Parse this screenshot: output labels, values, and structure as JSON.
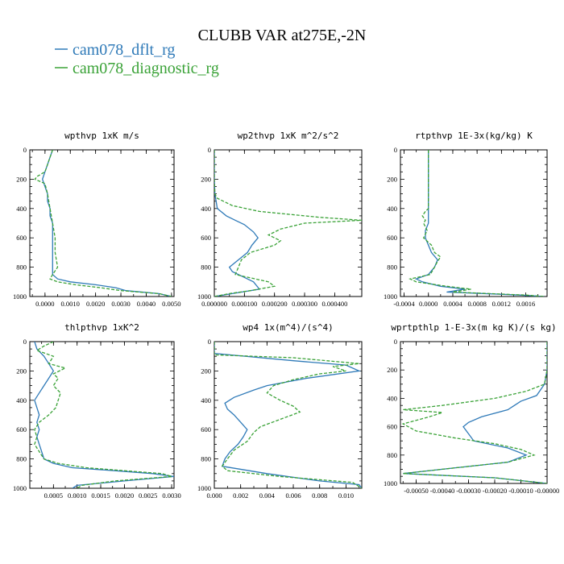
{
  "figure_title": "CLUBB VAR at275E,-2N",
  "legend": [
    {
      "name": "cam078_dflt_rg",
      "color": "#2f7ab8",
      "dash": "solid"
    },
    {
      "name": "cam078_diagnostic_rg",
      "color": "#3aa237",
      "dash": "dashed"
    }
  ],
  "chart_data": [
    {
      "type": "line",
      "title": "wpthvp  1xK m/s",
      "xlim": [
        -0.0006,
        0.0051
      ],
      "ylim": [
        1000,
        0
      ],
      "xticks": [
        "0.0000",
        "0.0010",
        "0.0020",
        "0.0030",
        "0.0040",
        "0.0050"
      ],
      "xtick_values": [
        0,
        0.001,
        0.002,
        0.003,
        0.004,
        0.005
      ],
      "yticks": [
        0,
        200,
        400,
        600,
        800,
        1000
      ],
      "series": [
        {
          "name": "cam078_dflt_rg",
          "y": [
            0,
            50,
            100,
            150,
            200,
            250,
            300,
            350,
            400,
            450,
            500,
            600,
            700,
            800,
            850,
            880,
            900,
            920,
            940,
            960,
            980,
            1000
          ],
          "x": [
            0.0003,
            0.0002,
            0.0001,
            0.0,
            -0.0001,
            0.0,
            0.0001,
            0.0001,
            0.0002,
            0.0002,
            0.0003,
            0.0003,
            0.0003,
            0.0003,
            0.0003,
            0.0005,
            0.001,
            0.002,
            0.0028,
            0.0032,
            0.0045,
            0.005
          ]
        },
        {
          "name": "cam078_diagnostic_rg",
          "y": [
            0,
            50,
            100,
            150,
            180,
            200,
            230,
            300,
            400,
            500,
            600,
            700,
            800,
            850,
            880,
            900,
            920,
            940,
            960,
            980,
            1000
          ],
          "x": [
            0.0003,
            0.0002,
            0.0001,
            0.0,
            -0.0003,
            -0.0004,
            0.0,
            0.0001,
            0.0002,
            0.0003,
            0.0004,
            0.0004,
            0.0005,
            0.0003,
            0.0002,
            0.0005,
            0.0012,
            0.0022,
            0.003,
            0.0045,
            0.005
          ]
        }
      ]
    },
    {
      "type": "line",
      "title": "wp2thvp  1xK m^2/s^2",
      "xlim": [
        0,
        0.00049
      ],
      "ylim": [
        1000,
        0
      ],
      "xticks": [
        "0.000000",
        "0.000100",
        "0.000200",
        "0.000300",
        "0.000400"
      ],
      "xtick_values": [
        0,
        0.0001,
        0.0002,
        0.0003,
        0.0004
      ],
      "yticks": [
        0,
        200,
        400,
        600,
        800,
        1000
      ],
      "series": [
        {
          "name": "cam078_dflt_rg",
          "y": [
            0,
            200,
            300,
            400,
            450,
            480,
            510,
            560,
            600,
            650,
            700,
            750,
            800,
            830,
            870,
            900,
            950,
            980,
            1000
          ],
          "x": [
            0,
            0,
            2e-06,
            1e-05,
            4e-05,
            7e-05,
            0.0001,
            0.00013,
            0.000145,
            0.000125,
            0.00011,
            8e-05,
            5e-05,
            6e-05,
            0.0001,
            0.00013,
            0.00015,
            6e-05,
            0.0
          ]
        },
        {
          "name": "cam078_diagnostic_rg",
          "y": [
            0,
            200,
            300,
            330,
            380,
            420,
            460,
            480,
            500,
            540,
            580,
            620,
            650,
            700,
            750,
            800,
            850,
            900,
            930,
            960,
            980,
            1000
          ],
          "x": [
            0,
            0,
            2e-06,
            1e-05,
            6e-05,
            0.00015,
            0.00035,
            0.00049,
            0.0003,
            0.00022,
            0.00018,
            0.00022,
            0.0002,
            0.00012,
            9e-05,
            8e-05,
            7e-05,
            0.00018,
            0.0002,
            0.00012,
            5e-05,
            0.0
          ]
        }
      ]
    },
    {
      "type": "line",
      "title": "rtpthvp  1E-3x(kg/kg) K",
      "xlim": [
        -0.00046,
        0.00195
      ],
      "ylim": [
        1000,
        0
      ],
      "xticks": [
        "-0.0004",
        "0.0000",
        "0.0004",
        "0.0008",
        "0.0012",
        "0.0016"
      ],
      "xtick_values": [
        -0.0004,
        0,
        0.0004,
        0.0008,
        0.0012,
        0.0016
      ],
      "yticks": [
        0,
        200,
        400,
        600,
        800,
        1000
      ],
      "series": [
        {
          "name": "cam078_dflt_rg",
          "y": [
            0,
            100,
            200,
            300,
            400,
            450,
            500,
            550,
            600,
            650,
            700,
            750,
            800,
            850,
            880,
            900,
            930,
            950,
            970,
            990,
            1000
          ],
          "x": [
            0.0,
            0.0,
            0.0,
            0.0,
            0.0,
            0.0,
            0.0,
            -5e-05,
            -5e-05,
            0.0,
            5e-05,
            0.00015,
            0.0001,
            0.0,
            -0.0002,
            -0.0001,
            0.0002,
            0.0006,
            0.0003,
            0.0015,
            0.0019
          ]
        },
        {
          "name": "cam078_diagnostic_rg",
          "y": [
            0,
            100,
            200,
            300,
            400,
            420,
            450,
            480,
            500,
            550,
            600,
            650,
            700,
            730,
            760,
            800,
            850,
            880,
            900,
            930,
            950,
            970,
            990,
            1000
          ],
          "x": [
            0.0,
            0.0,
            0.0,
            0.0,
            0.0,
            -5e-05,
            -0.0001,
            -5e-05,
            -8e-05,
            -2e-05,
            -8e-05,
            5e-05,
            0.0001,
            0.0002,
            0.00015,
            0.0001,
            3e-05,
            -0.0003,
            -0.0002,
            0.0003,
            0.0007,
            0.0004,
            0.0016,
            0.0019
          ]
        }
      ]
    },
    {
      "type": "line",
      "title": "thlpthvp  1xK^2",
      "xlim": [
        0,
        0.00305
      ],
      "ylim": [
        1000,
        0
      ],
      "xticks": [
        "0.0005",
        "0.0010",
        "0.0015",
        "0.0020",
        "0.0025",
        "0.0030"
      ],
      "xtick_values": [
        0.0005,
        0.001,
        0.0015,
        0.002,
        0.0025,
        0.003
      ],
      "yticks": [
        0,
        200,
        400,
        600,
        800,
        1000
      ],
      "series": [
        {
          "name": "cam078_dflt_rg",
          "y": [
            0,
            50,
            100,
            150,
            200,
            250,
            300,
            350,
            400,
            450,
            500,
            550,
            600,
            650,
            700,
            750,
            800,
            830,
            860,
            880,
            900,
            920,
            950,
            980,
            1000
          ],
          "x": [
            0.0001,
            0.00015,
            0.0003,
            0.0004,
            0.0005,
            0.0004,
            0.0003,
            0.0002,
            0.0001,
            0.00015,
            0.0002,
            0.00015,
            0.0002,
            0.00015,
            0.0002,
            0.00025,
            0.0003,
            0.0005,
            0.0009,
            0.0018,
            0.0026,
            0.00305,
            0.002,
            0.001,
            0.0009
          ]
        },
        {
          "name": "cam078_diagnostic_rg",
          "y": [
            0,
            30,
            60,
            100,
            150,
            180,
            220,
            250,
            300,
            350,
            400,
            450,
            500,
            550,
            600,
            650,
            700,
            750,
            800,
            830,
            860,
            880,
            900,
            920,
            950,
            980,
            1000
          ],
          "x": [
            0.0005,
            0.0003,
            0.00015,
            0.0005,
            0.0004,
            0.00075,
            0.0005,
            0.0006,
            0.0005,
            0.00065,
            0.0006,
            0.00055,
            0.0004,
            0.0002,
            0.0001,
            0.00015,
            0.0001,
            0.0002,
            0.0003,
            0.0006,
            0.0012,
            0.002,
            0.0028,
            0.003,
            0.0018,
            0.0011,
            0.001
          ]
        }
      ]
    },
    {
      "type": "line",
      "title": "wp4  1x(m^4)/(s^4)",
      "xlim": [
        0,
        0.0112
      ],
      "ylim": [
        1000,
        0
      ],
      "xticks": [
        "0.000",
        "0.002",
        "0.004",
        "0.006",
        "0.008",
        "0.010"
      ],
      "xtick_values": [
        0,
        0.002,
        0.004,
        0.006,
        0.008,
        0.01
      ],
      "yticks": [
        0,
        200,
        400,
        600,
        800,
        1000
      ],
      "series": [
        {
          "name": "cam078_dflt_rg",
          "y": [
            0,
            80,
            130,
            160,
            200,
            250,
            300,
            330,
            380,
            420,
            460,
            500,
            550,
            600,
            650,
            700,
            750,
            800,
            850,
            900,
            950,
            975,
            1000
          ],
          "x": [
            0.0,
            0.0,
            0.006,
            0.01,
            0.011,
            0.007,
            0.004,
            0.003,
            0.0015,
            0.0008,
            0.001,
            0.0015,
            0.002,
            0.0025,
            0.0022,
            0.0018,
            0.0012,
            0.0008,
            0.0006,
            0.004,
            0.008,
            0.011,
            0.0112
          ]
        },
        {
          "name": "cam078_diagnostic_rg",
          "y": [
            0,
            90,
            110,
            150,
            170,
            200,
            220,
            260,
            300,
            350,
            400,
            440,
            480,
            530,
            580,
            620,
            680,
            740,
            800,
            850,
            880,
            920,
            960,
            1000
          ],
          "x": [
            0.0,
            0.0,
            0.006,
            0.011,
            0.009,
            0.01,
            0.008,
            0.006,
            0.0045,
            0.004,
            0.005,
            0.006,
            0.0065,
            0.005,
            0.0035,
            0.003,
            0.0025,
            0.0015,
            0.001,
            0.0006,
            0.001,
            0.005,
            0.0105,
            0.0112
          ]
        }
      ]
    },
    {
      "type": "line",
      "title": "wprtpthlp  1-E-3x(m kg K)/(s kg)",
      "xlim": [
        -0.00056,
        0.0
      ],
      "ylim": [
        1000,
        0
      ],
      "xticks": [
        "-0.00050",
        "-0.00040",
        "-0.00030",
        "-0.00020",
        "-0.00010",
        "-0.00000"
      ],
      "xtick_values": [
        -0.0005,
        -0.0004,
        -0.0003,
        -0.0002,
        -0.0001,
        0
      ],
      "yticks": [
        0,
        200,
        400,
        600,
        800,
        1000
      ],
      "series": [
        {
          "name": "cam078_dflt_rg",
          "y": [
            0,
            200,
            300,
            380,
            420,
            480,
            530,
            570,
            600,
            650,
            700,
            750,
            800,
            850,
            900,
            930,
            960,
            1000
          ],
          "x": [
            0.0,
            0.0,
            -1e-05,
            -4e-05,
            -0.0001,
            -0.00015,
            -0.00025,
            -0.0003,
            -0.00032,
            -0.0003,
            -0.00028,
            -0.00015,
            -8e-05,
            -0.00015,
            -0.0004,
            -0.00055,
            -0.0002,
            0.0
          ]
        },
        {
          "name": "cam078_diagnostic_rg",
          "y": [
            0,
            200,
            300,
            350,
            400,
            450,
            480,
            500,
            530,
            580,
            630,
            680,
            720,
            760,
            800,
            850,
            900,
            930,
            960,
            1000
          ],
          "x": [
            0.0,
            0.0,
            -1e-05,
            -8e-05,
            -0.0002,
            -0.0004,
            -0.00055,
            -0.0004,
            -0.00045,
            -0.00055,
            -0.0005,
            -0.00035,
            -0.0002,
            -0.0001,
            -5e-05,
            -0.00015,
            -0.0004,
            -0.00055,
            -0.0002,
            0.0
          ]
        }
      ]
    }
  ]
}
